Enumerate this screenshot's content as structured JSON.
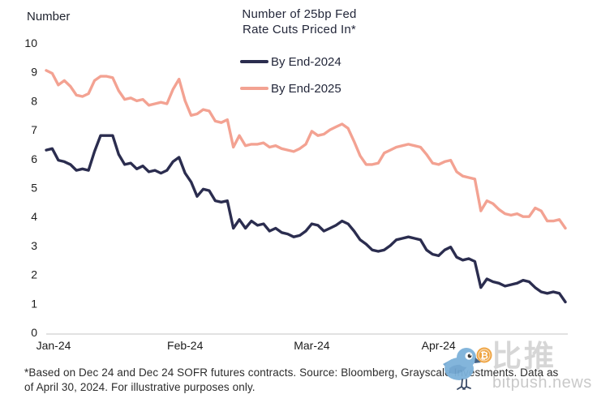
{
  "chart_data": {
    "type": "line",
    "title": "Number of 25bp Fed Rate Cuts Priced In*",
    "title_lines": [
      "Number of 25bp Fed",
      "Rate Cuts Priced In*"
    ],
    "ylabel": "Number",
    "xlabel": "",
    "ylim": [
      0,
      10
    ],
    "yticks": [
      0,
      1,
      2,
      3,
      4,
      5,
      6,
      7,
      8,
      9,
      10
    ],
    "xticks": [
      "Jan-24",
      "Feb-24",
      "Mar-24",
      "Apr-24"
    ],
    "xtick_indices": [
      0,
      23,
      44,
      65
    ],
    "grid": false,
    "legend_position": "top-center",
    "series": [
      {
        "name": "By End-2024",
        "color": "#2b2d4f",
        "values": [
          6.3,
          6.35,
          5.95,
          5.9,
          5.8,
          5.6,
          5.65,
          5.6,
          6.25,
          6.8,
          6.8,
          6.8,
          6.15,
          5.8,
          5.85,
          5.65,
          5.75,
          5.55,
          5.6,
          5.5,
          5.6,
          5.9,
          6.05,
          5.5,
          5.2,
          4.7,
          4.95,
          4.9,
          4.55,
          4.5,
          4.55,
          3.6,
          3.9,
          3.6,
          3.85,
          3.7,
          3.75,
          3.5,
          3.6,
          3.45,
          3.4,
          3.3,
          3.35,
          3.5,
          3.75,
          3.7,
          3.5,
          3.6,
          3.7,
          3.85,
          3.75,
          3.5,
          3.2,
          3.05,
          2.85,
          2.8,
          2.85,
          3.0,
          3.2,
          3.25,
          3.3,
          3.25,
          3.2,
          2.85,
          2.7,
          2.65,
          2.85,
          2.95,
          2.6,
          2.5,
          2.55,
          2.45,
          1.55,
          1.85,
          1.75,
          1.7,
          1.6,
          1.65,
          1.7,
          1.8,
          1.75,
          1.55,
          1.4,
          1.35,
          1.4,
          1.35,
          1.05
        ]
      },
      {
        "name": "By End-2025",
        "color": "#f3a292",
        "values": [
          9.05,
          8.95,
          8.55,
          8.7,
          8.5,
          8.2,
          8.15,
          8.25,
          8.7,
          8.85,
          8.85,
          8.8,
          8.35,
          8.05,
          8.1,
          8.0,
          8.05,
          7.85,
          7.9,
          7.95,
          7.9,
          8.4,
          8.75,
          8.0,
          7.5,
          7.55,
          7.7,
          7.65,
          7.3,
          7.25,
          7.35,
          6.4,
          6.8,
          6.45,
          6.5,
          6.5,
          6.55,
          6.4,
          6.45,
          6.35,
          6.3,
          6.25,
          6.35,
          6.5,
          6.95,
          6.8,
          6.85,
          7.0,
          7.1,
          7.2,
          7.05,
          6.6,
          6.1,
          5.8,
          5.8,
          5.85,
          6.2,
          6.3,
          6.4,
          6.45,
          6.5,
          6.45,
          6.4,
          6.15,
          5.85,
          5.8,
          5.9,
          5.95,
          5.55,
          5.4,
          5.35,
          5.3,
          4.2,
          4.55,
          4.45,
          4.25,
          4.1,
          4.05,
          4.1,
          4.0,
          4.0,
          4.3,
          4.2,
          3.85,
          3.85,
          3.9,
          3.6
        ]
      }
    ]
  },
  "axis_colors": {
    "axis_line": "#d9d9d9",
    "tick_text": "#1c1c1c"
  },
  "footnote": {
    "line1": "*Based on Dec 24 and Dec 24 SOFR futures contracts. Source: Bloomberg, Grayscale Investments. Data as",
    "line2": "of April 30, 2024. For illustrative purposes only."
  },
  "watermark": {
    "cn_text": "比推",
    "domain": "bitpush.news",
    "bitcoin_symbol": "₿",
    "bird_color": "#7db2da",
    "coin_color": "#efa13a",
    "gray_text_color": "#d6d6d6"
  }
}
